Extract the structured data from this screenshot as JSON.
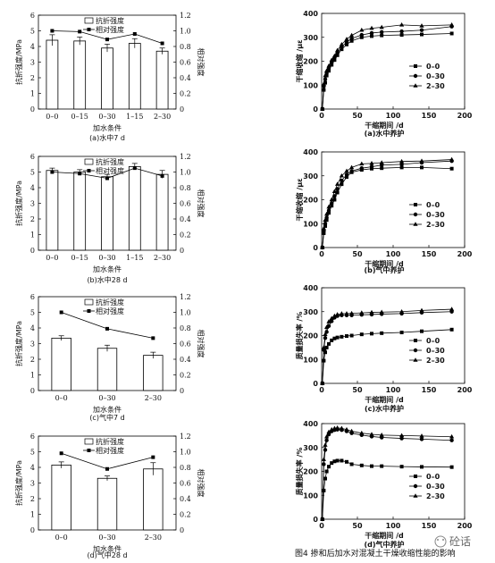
{
  "figure_caption": "图4 掺和后加水对混凝土干燥收缩性能的影响",
  "watermark": "砼话",
  "chart_data": [
    {
      "id": "a_left",
      "type": "bar",
      "caption": "(a)水中7 d",
      "xlabel": "加水条件",
      "ylabel": "抗折强度/MPa",
      "y2label": "相对强度",
      "categories": [
        "0–0",
        "0–15",
        "0–30",
        "1–15",
        "2–30"
      ],
      "ylim": [
        0,
        6
      ],
      "yticks": [
        "0",
        "1",
        "2",
        "3",
        "4",
        "5",
        "6"
      ],
      "y2lim": [
        0,
        1.2
      ],
      "y2ticks": [
        "0",
        "0.2",
        "0.4",
        "0.6",
        "0.8",
        "1.0",
        "1.2"
      ],
      "series": [
        {
          "name": "抗折强度",
          "kind": "bar",
          "values": [
            4.4,
            4.35,
            3.9,
            4.2,
            3.7
          ],
          "errors": [
            0.35,
            0.25,
            0.25,
            0.3,
            0.2
          ]
        },
        {
          "name": "相对强度",
          "kind": "line",
          "axis": "y2",
          "values": [
            1.0,
            0.99,
            0.89,
            0.96,
            0.84
          ]
        }
      ],
      "legend": "top"
    },
    {
      "id": "b_left",
      "type": "bar",
      "caption": "(b)水中28 d",
      "xlabel": "加水条件",
      "ylabel": "抗折强度/MPa",
      "y2label": "相对强度",
      "categories": [
        "0–0",
        "0–15",
        "0–30",
        "1–15",
        "2–30"
      ],
      "ylim": [
        0,
        6
      ],
      "yticks": [
        "0",
        "1",
        "2",
        "3",
        "4",
        "5",
        "6"
      ],
      "y2lim": [
        0,
        1.2
      ],
      "y2ticks": [
        "0",
        "0.2",
        "0.4",
        "0.6",
        "0.8",
        "1.0",
        "1.2"
      ],
      "series": [
        {
          "name": "抗折强度",
          "kind": "bar",
          "values": [
            5.1,
            5.0,
            4.7,
            5.35,
            4.85
          ],
          "errors": [
            0.15,
            0.15,
            0.15,
            0.2,
            0.25
          ]
        },
        {
          "name": "相对强度",
          "kind": "line",
          "axis": "y2",
          "values": [
            1.0,
            0.98,
            0.92,
            1.05,
            0.95
          ]
        }
      ],
      "legend": "top"
    },
    {
      "id": "c_left",
      "type": "bar",
      "caption": "(c)气中7 d",
      "xlabel": "加水条件",
      "ylabel": "抗折强度/MPa",
      "y2label": "相对强度",
      "categories": [
        "0–0",
        "0–30",
        "2–30"
      ],
      "ylim": [
        0,
        6
      ],
      "yticks": [
        "0",
        "1",
        "2",
        "3",
        "4",
        "5",
        "6"
      ],
      "y2lim": [
        0,
        1.2
      ],
      "y2ticks": [
        "0",
        "0.2",
        "0.4",
        "0.6",
        "0.8",
        "1.0",
        "1.2"
      ],
      "series": [
        {
          "name": "抗折强度",
          "kind": "bar",
          "values": [
            3.35,
            2.7,
            2.25
          ],
          "errors": [
            0.15,
            0.2,
            0.2
          ]
        },
        {
          "name": "相对强度",
          "kind": "line",
          "axis": "y2",
          "values": [
            1.0,
            0.79,
            0.67
          ]
        }
      ],
      "legend": "top"
    },
    {
      "id": "d_left",
      "type": "bar",
      "caption": "(d)气中28 d",
      "xlabel": "加水条件",
      "ylabel": "抗折强度/MPa",
      "y2label": "相对强度",
      "categories": [
        "0–0",
        "0–30",
        "2–30"
      ],
      "ylim": [
        0,
        6
      ],
      "yticks": [
        "0",
        "1",
        "2",
        "3",
        "4",
        "5",
        "6"
      ],
      "y2lim": [
        0,
        1.2
      ],
      "y2ticks": [
        "0",
        "0.2",
        "0.4",
        "0.6",
        "0.8",
        "1.0",
        "1.2"
      ],
      "series": [
        {
          "name": "抗折强度",
          "kind": "bar",
          "values": [
            4.15,
            3.3,
            3.9
          ],
          "errors": [
            0.2,
            0.15,
            0.4
          ]
        },
        {
          "name": "相对强度",
          "kind": "line",
          "axis": "y2",
          "values": [
            0.98,
            0.78,
            0.93
          ]
        }
      ],
      "legend": "top"
    },
    {
      "id": "a_right",
      "type": "line",
      "caption": "(a)水中养护",
      "xlabel": "干缩期间 /d",
      "ylabel": "干缩收缩 /με",
      "xlim": [
        0,
        200
      ],
      "xticks": [
        "0",
        "50",
        "100",
        "150",
        "200"
      ],
      "ylim": [
        0,
        400
      ],
      "yticks": [
        "0",
        "100",
        "200",
        "300",
        "400"
      ],
      "series": [
        {
          "name": "0–0",
          "marker": "square",
          "x": [
            1,
            3,
            5,
            7,
            10,
            14,
            18,
            22,
            28,
            35,
            42,
            56,
            70,
            84,
            112,
            140,
            182
          ],
          "y": [
            0,
            80,
            110,
            140,
            160,
            185,
            205,
            225,
            250,
            270,
            285,
            300,
            305,
            308,
            310,
            312,
            316
          ]
        },
        {
          "name": "0–30",
          "marker": "circle",
          "x": [
            1,
            3,
            5,
            7,
            10,
            14,
            18,
            22,
            28,
            35,
            42,
            56,
            70,
            84,
            112,
            140,
            182
          ],
          "y": [
            0,
            95,
            125,
            150,
            170,
            195,
            215,
            235,
            260,
            280,
            295,
            310,
            318,
            322,
            325,
            330,
            345
          ]
        },
        {
          "name": "2–30",
          "marker": "triangle",
          "x": [
            1,
            3,
            5,
            7,
            10,
            14,
            18,
            22,
            28,
            35,
            42,
            56,
            70,
            84,
            112,
            140,
            182
          ],
          "y": [
            0,
            105,
            140,
            160,
            180,
            205,
            222,
            245,
            270,
            292,
            308,
            330,
            338,
            342,
            352,
            348,
            352
          ]
        }
      ],
      "legend": "right"
    },
    {
      "id": "b_right",
      "type": "line",
      "caption": "(b)气中养护",
      "xlabel": "干缩期间 /d",
      "ylabel": "干缩收缩 /με",
      "xlim": [
        0,
        200
      ],
      "xticks": [
        "0",
        "50",
        "100",
        "150",
        "200"
      ],
      "ylim": [
        0,
        400
      ],
      "yticks": [
        "0",
        "100",
        "200",
        "300",
        "400"
      ],
      "series": [
        {
          "name": "0–0",
          "marker": "square",
          "x": [
            1,
            3,
            5,
            7,
            10,
            14,
            18,
            22,
            28,
            35,
            42,
            56,
            70,
            84,
            112,
            140,
            182
          ],
          "y": [
            0,
            60,
            90,
            115,
            145,
            175,
            200,
            230,
            265,
            295,
            315,
            325,
            330,
            332,
            335,
            335,
            330
          ]
        },
        {
          "name": "0–30",
          "marker": "circle",
          "x": [
            1,
            3,
            5,
            7,
            10,
            14,
            18,
            22,
            28,
            35,
            42,
            56,
            70,
            84,
            112,
            140,
            182
          ],
          "y": [
            0,
            70,
            100,
            125,
            155,
            185,
            215,
            245,
            280,
            305,
            320,
            332,
            338,
            345,
            348,
            355,
            362
          ]
        },
        {
          "name": "2–30",
          "marker": "triangle",
          "x": [
            1,
            3,
            5,
            7,
            10,
            14,
            18,
            22,
            28,
            35,
            42,
            56,
            70,
            84,
            112,
            140,
            182
          ],
          "y": [
            0,
            80,
            115,
            140,
            170,
            200,
            235,
            265,
            300,
            320,
            335,
            350,
            352,
            355,
            360,
            362,
            368
          ]
        }
      ],
      "legend": "right"
    },
    {
      "id": "c_right",
      "type": "line",
      "caption": "(c)水中养护",
      "xlabel": "干缩期间 /d",
      "ylabel": "质量损失率 /%",
      "xlim": [
        0,
        200
      ],
      "xticks": [
        "0",
        "50",
        "100",
        "150",
        "200"
      ],
      "ylim": [
        0,
        400
      ],
      "yticks": [
        "0",
        "100",
        "200",
        "300",
        "400"
      ],
      "series": [
        {
          "name": "0–0",
          "marker": "square",
          "x": [
            1,
            3,
            5,
            7,
            10,
            14,
            18,
            22,
            28,
            35,
            42,
            56,
            70,
            84,
            112,
            140,
            182
          ],
          "y": [
            0,
            95,
            130,
            150,
            165,
            180,
            188,
            192,
            195,
            198,
            200,
            205,
            208,
            210,
            213,
            218,
            225
          ]
        },
        {
          "name": "0–30",
          "marker": "circle",
          "x": [
            1,
            3,
            5,
            7,
            10,
            14,
            18,
            22,
            28,
            35,
            42,
            56,
            70,
            84,
            112,
            140,
            182
          ],
          "y": [
            0,
            140,
            190,
            215,
            240,
            260,
            275,
            282,
            285,
            285,
            285,
            287,
            288,
            290,
            292,
            296,
            300
          ]
        },
        {
          "name": "2–30",
          "marker": "triangle",
          "x": [
            1,
            3,
            5,
            7,
            10,
            14,
            18,
            22,
            28,
            35,
            42,
            56,
            70,
            84,
            112,
            140,
            182
          ],
          "y": [
            0,
            150,
            205,
            235,
            258,
            272,
            282,
            288,
            292,
            292,
            293,
            295,
            297,
            298,
            300,
            305,
            310
          ]
        }
      ],
      "legend": "right"
    },
    {
      "id": "d_right",
      "type": "line",
      "caption": "(d)气中养护",
      "xlabel": "干缩期间 /d",
      "ylabel": "质量损失率 /%",
      "xlim": [
        0,
        200
      ],
      "xticks": [
        "0",
        "50",
        "100",
        "150",
        "200"
      ],
      "ylim": [
        0,
        400
      ],
      "yticks": [
        "0",
        "100",
        "200",
        "300",
        "400"
      ],
      "series": [
        {
          "name": "0–0",
          "marker": "square",
          "x": [
            1,
            3,
            5,
            7,
            10,
            14,
            18,
            22,
            28,
            35,
            42,
            56,
            70,
            84,
            112,
            140,
            182
          ],
          "y": [
            0,
            120,
            170,
            200,
            220,
            235,
            242,
            245,
            245,
            240,
            230,
            225,
            222,
            222,
            220,
            219,
            218
          ]
        },
        {
          "name": "0–30",
          "marker": "circle",
          "x": [
            1,
            3,
            5,
            7,
            10,
            14,
            18,
            22,
            28,
            35,
            42,
            56,
            70,
            84,
            112,
            140,
            182
          ],
          "y": [
            0,
            230,
            290,
            330,
            355,
            368,
            373,
            375,
            373,
            368,
            360,
            352,
            346,
            342,
            338,
            335,
            330
          ]
        },
        {
          "name": "2–30",
          "marker": "triangle",
          "x": [
            1,
            3,
            5,
            7,
            10,
            14,
            18,
            22,
            28,
            35,
            42,
            56,
            70,
            84,
            112,
            140,
            182
          ],
          "y": [
            0,
            250,
            310,
            345,
            365,
            375,
            380,
            382,
            380,
            375,
            368,
            360,
            355,
            352,
            350,
            348,
            345
          ]
        }
      ],
      "legend": "right"
    }
  ]
}
